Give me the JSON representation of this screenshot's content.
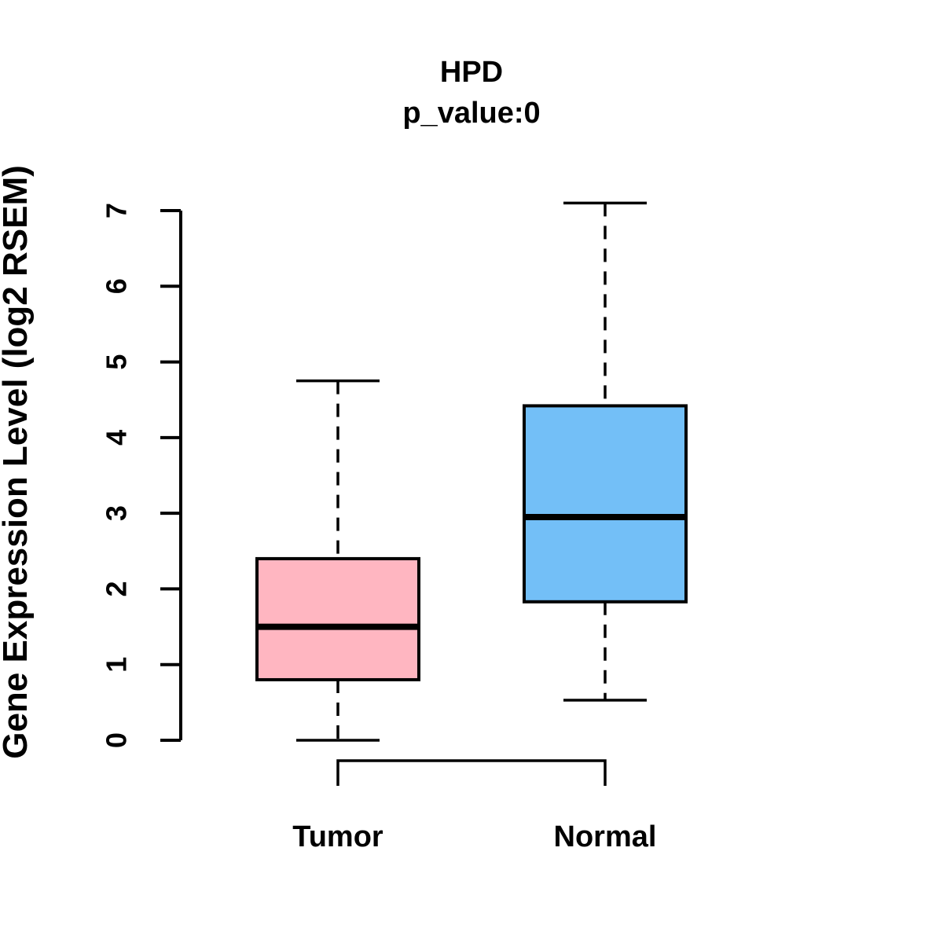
{
  "chart_data": {
    "type": "boxplot",
    "title": "HPD",
    "subtitle": "p_value:0",
    "ylabel": "Gene Expression Level (log2 RSEM)",
    "xlabel": "",
    "ylim": [
      0,
      7
    ],
    "yticks": [
      "0",
      "1",
      "2",
      "3",
      "4",
      "5",
      "6",
      "7"
    ],
    "grid": false,
    "legend_position": "none",
    "groups": [
      {
        "label": "Tumor",
        "color": "#FFB6C1",
        "whisker_low": 0.0,
        "q1": 0.8,
        "median": 1.5,
        "q3": 2.4,
        "whisker_high": 4.75,
        "outliers": []
      },
      {
        "label": "Normal",
        "color": "#73BFF7",
        "whisker_low": 0.53,
        "q1": 1.83,
        "median": 2.95,
        "q3": 4.42,
        "whisker_high": 7.1,
        "outliers": []
      }
    ],
    "colors": {
      "box_border": "#000000",
      "axis": "#000000",
      "background": "#ffffff"
    }
  }
}
